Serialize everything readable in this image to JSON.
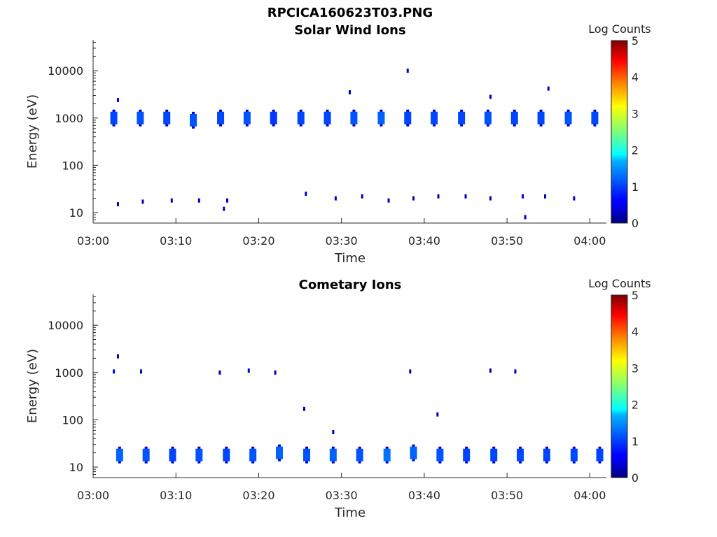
{
  "figure": {
    "filename": "RPCICA160623T03.PNG"
  },
  "chart_data": [
    {
      "type": "heatmap",
      "title": "Solar Wind Ions",
      "xlabel": "Time",
      "ylabel": "Energy (eV)",
      "x_ticks": [
        "03:00",
        "03:10",
        "03:20",
        "03:30",
        "03:40",
        "03:50",
        "04:00"
      ],
      "x_range_minutes": [
        0,
        62
      ],
      "y_scale": "log",
      "y_ticks": [
        10,
        100,
        1000,
        10000
      ],
      "y_tick_labels": [
        "10",
        "100",
        "1000",
        "10000"
      ],
      "y_range": [
        6,
        45000
      ],
      "colorbar": {
        "label": "Log Counts",
        "range": [
          0,
          5
        ],
        "ticks": [
          "0",
          "1",
          "2",
          "3",
          "4",
          "5"
        ],
        "colormap": "jet"
      },
      "cells": [
        {
          "t": 2.5,
          "e": 1000,
          "v": 1.0
        },
        {
          "t": 5.7,
          "e": 1000,
          "v": 1.1
        },
        {
          "t": 8.9,
          "e": 1000,
          "v": 1.0
        },
        {
          "t": 12.1,
          "e": 900,
          "v": 1.1
        },
        {
          "t": 15.4,
          "e": 1000,
          "v": 1.0
        },
        {
          "t": 18.6,
          "e": 1000,
          "v": 1.1
        },
        {
          "t": 21.8,
          "e": 1000,
          "v": 0.9
        },
        {
          "t": 25.1,
          "e": 1000,
          "v": 1.0
        },
        {
          "t": 28.3,
          "e": 1000,
          "v": 1.0
        },
        {
          "t": 31.5,
          "e": 1000,
          "v": 1.1
        },
        {
          "t": 34.8,
          "e": 1000,
          "v": 1.2
        },
        {
          "t": 38.0,
          "e": 1000,
          "v": 1.0
        },
        {
          "t": 41.2,
          "e": 1000,
          "v": 1.0
        },
        {
          "t": 44.5,
          "e": 1000,
          "v": 1.0
        },
        {
          "t": 47.7,
          "e": 1000,
          "v": 1.1
        },
        {
          "t": 50.9,
          "e": 1000,
          "v": 1.0
        },
        {
          "t": 54.1,
          "e": 1000,
          "v": 1.0
        },
        {
          "t": 57.4,
          "e": 1000,
          "v": 1.1
        },
        {
          "t": 60.6,
          "e": 1000,
          "v": 1.0
        },
        {
          "t": 3.0,
          "e": 2400,
          "v": 0.5
        },
        {
          "t": 3.0,
          "e": 15,
          "v": 0.3
        },
        {
          "t": 6.0,
          "e": 17,
          "v": 0.3
        },
        {
          "t": 9.5,
          "e": 18,
          "v": 0.3
        },
        {
          "t": 12.8,
          "e": 18,
          "v": 0.3
        },
        {
          "t": 15.8,
          "e": 12,
          "v": 0.3
        },
        {
          "t": 16.2,
          "e": 18,
          "v": 0.3
        },
        {
          "t": 25.7,
          "e": 25,
          "v": 0.3
        },
        {
          "t": 29.3,
          "e": 20,
          "v": 0.3
        },
        {
          "t": 32.5,
          "e": 22,
          "v": 0.3
        },
        {
          "t": 35.7,
          "e": 18,
          "v": 0.3
        },
        {
          "t": 38.7,
          "e": 20,
          "v": 0.3
        },
        {
          "t": 41.7,
          "e": 22,
          "v": 0.3
        },
        {
          "t": 45.0,
          "e": 22,
          "v": 0.3
        },
        {
          "t": 48.0,
          "e": 20,
          "v": 0.3
        },
        {
          "t": 51.9,
          "e": 22,
          "v": 0.3
        },
        {
          "t": 54.6,
          "e": 22,
          "v": 0.3
        },
        {
          "t": 58.1,
          "e": 20,
          "v": 0.3
        },
        {
          "t": 52.2,
          "e": 8,
          "v": 0.3
        },
        {
          "t": 38.0,
          "e": 10000,
          "v": 0.3
        },
        {
          "t": 31.0,
          "e": 3500,
          "v": 0.3
        },
        {
          "t": 48.0,
          "e": 2800,
          "v": 0.3
        },
        {
          "t": 55.0,
          "e": 4200,
          "v": 0.3
        }
      ]
    },
    {
      "type": "heatmap",
      "title": "Cometary Ions",
      "xlabel": "Time",
      "ylabel": "Energy (eV)",
      "x_ticks": [
        "03:00",
        "03:10",
        "03:20",
        "03:30",
        "03:40",
        "03:50",
        "04:00"
      ],
      "x_range_minutes": [
        0,
        62
      ],
      "y_scale": "log",
      "y_ticks": [
        10,
        100,
        1000,
        10000
      ],
      "y_tick_labels": [
        "10",
        "100",
        "1000",
        "10000"
      ],
      "y_range": [
        6,
        45000
      ],
      "colorbar": {
        "label": "Log Counts",
        "range": [
          0,
          5
        ],
        "ticks": [
          "0",
          "1",
          "2",
          "3",
          "4",
          "5"
        ],
        "colormap": "jet"
      },
      "cells": [
        {
          "t": 3.2,
          "e": 18,
          "v": 1.2
        },
        {
          "t": 6.4,
          "e": 18,
          "v": 1.1
        },
        {
          "t": 9.6,
          "e": 18,
          "v": 1.0
        },
        {
          "t": 12.8,
          "e": 18,
          "v": 1.1
        },
        {
          "t": 16.1,
          "e": 18,
          "v": 1.0
        },
        {
          "t": 19.3,
          "e": 18,
          "v": 1.1
        },
        {
          "t": 22.5,
          "e": 20,
          "v": 1.2
        },
        {
          "t": 25.8,
          "e": 18,
          "v": 1.1
        },
        {
          "t": 29.0,
          "e": 18,
          "v": 1.2
        },
        {
          "t": 32.2,
          "e": 18,
          "v": 1.1
        },
        {
          "t": 35.5,
          "e": 18,
          "v": 1.3
        },
        {
          "t": 38.7,
          "e": 20,
          "v": 1.2
        },
        {
          "t": 41.9,
          "e": 18,
          "v": 1.1
        },
        {
          "t": 45.1,
          "e": 18,
          "v": 1.0
        },
        {
          "t": 48.4,
          "e": 18,
          "v": 1.0
        },
        {
          "t": 51.6,
          "e": 18,
          "v": 1.0
        },
        {
          "t": 54.8,
          "e": 18,
          "v": 1.0
        },
        {
          "t": 58.1,
          "e": 18,
          "v": 1.0
        },
        {
          "t": 61.2,
          "e": 18,
          "v": 1.0
        },
        {
          "t": 2.5,
          "e": 1050,
          "v": 0.6
        },
        {
          "t": 3.0,
          "e": 2200,
          "v": 0.3
        },
        {
          "t": 5.8,
          "e": 1050,
          "v": 0.3
        },
        {
          "t": 15.3,
          "e": 1000,
          "v": 0.3
        },
        {
          "t": 18.8,
          "e": 1100,
          "v": 0.3
        },
        {
          "t": 22.0,
          "e": 1000,
          "v": 0.3
        },
        {
          "t": 25.5,
          "e": 170,
          "v": 0.3
        },
        {
          "t": 29.0,
          "e": 55,
          "v": 0.3
        },
        {
          "t": 38.3,
          "e": 1050,
          "v": 0.3
        },
        {
          "t": 41.6,
          "e": 130,
          "v": 0.3
        },
        {
          "t": 48.0,
          "e": 1100,
          "v": 0.3
        },
        {
          "t": 51.0,
          "e": 1050,
          "v": 0.3
        }
      ]
    }
  ]
}
